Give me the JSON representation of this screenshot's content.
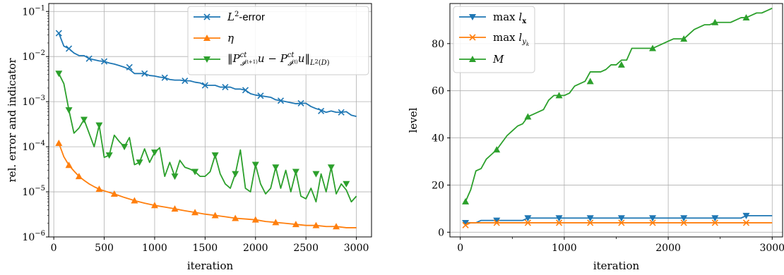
{
  "chart_data": [
    {
      "type": "line",
      "xlabel": "iteration",
      "ylabel": "rel. error and indicator",
      "yscale": "log",
      "xlim": [
        -50,
        3150
      ],
      "ylim": [
        1e-06,
        0.15
      ],
      "x_ticks": [
        0,
        500,
        1000,
        1500,
        2000,
        2500,
        3000
      ],
      "x_tick_labels": [
        "0",
        "500",
        "1000",
        "1500",
        "2000",
        "2500",
        "3000"
      ],
      "y_ticks": [
        1e-06,
        1e-05,
        0.0001,
        0.001,
        0.01,
        0.1
      ],
      "y_tick_labels": [
        "10",
        "10",
        "10",
        "10",
        "10",
        "10"
      ],
      "y_tick_exponents": [
        "−6",
        "−5",
        "−4",
        "−3",
        "−2",
        "−1"
      ],
      "grid": true,
      "legend_position": "top-right",
      "series": [
        {
          "name": "L²-error",
          "color": "#1f77b4",
          "marker": "x",
          "x": [
            50,
            100,
            150,
            200,
            250,
            300,
            350,
            400,
            450,
            500,
            550,
            600,
            650,
            700,
            750,
            800,
            850,
            900,
            950,
            1000,
            1050,
            1100,
            1150,
            1200,
            1250,
            1300,
            1350,
            1400,
            1450,
            1500,
            1550,
            1600,
            1650,
            1700,
            1750,
            1800,
            1850,
            1900,
            1950,
            2000,
            2050,
            2100,
            2150,
            2200,
            2250,
            2300,
            2350,
            2400,
            2450,
            2500,
            2550,
            2600,
            2650,
            2700,
            2750,
            2800,
            2850,
            2900,
            2950,
            3000
          ],
          "y": [
            0.033,
            0.017,
            0.015,
            0.012,
            0.0105,
            0.0105,
            0.009,
            0.0085,
            0.008,
            0.0078,
            0.0072,
            0.0068,
            0.0063,
            0.0058,
            0.0052,
            0.0042,
            0.0042,
            0.0042,
            0.0038,
            0.0037,
            0.0035,
            0.0034,
            0.0031,
            0.003,
            0.003,
            0.0029,
            0.0029,
            0.0027,
            0.0026,
            0.0023,
            0.0023,
            0.0023,
            0.0021,
            0.0021,
            0.0021,
            0.0019,
            0.0019,
            0.0018,
            0.0015,
            0.0014,
            0.00135,
            0.0013,
            0.00125,
            0.0011,
            0.00105,
            0.001,
            0.00095,
            0.0009,
            0.00092,
            0.00092,
            0.00078,
            0.0007,
            0.00065,
            0.00058,
            0.00062,
            0.00058,
            0.00058,
            0.0006,
            0.0005,
            0.00047
          ],
          "marker_x": [
            50,
            150,
            350,
            500,
            750,
            900,
            1100,
            1300,
            1500,
            1700,
            1900,
            2050,
            2250,
            2450,
            2650,
            2850
          ],
          "marker_y": [
            0.033,
            0.015,
            0.009,
            0.0078,
            0.0058,
            0.0042,
            0.0034,
            0.0029,
            0.0023,
            0.0021,
            0.0018,
            0.00135,
            0.00105,
            0.00092,
            0.00062,
            0.00058
          ]
        },
        {
          "name": "η",
          "color": "#ff7f0e",
          "marker": "^",
          "x": [
            50,
            100,
            150,
            200,
            250,
            300,
            350,
            400,
            450,
            500,
            600,
            700,
            800,
            900,
            1000,
            1100,
            1200,
            1300,
            1400,
            1500,
            1600,
            1700,
            1800,
            1900,
            2000,
            2100,
            2200,
            2300,
            2400,
            2500,
            2600,
            2700,
            2800,
            2900,
            3000
          ],
          "y": [
            0.00012,
            6e-05,
            3.9e-05,
            2.9e-05,
            2.2e-05,
            1.8e-05,
            1.5e-05,
            1.3e-05,
            1.15e-05,
            1.05e-05,
            9e-06,
            7.5e-06,
            6.4e-06,
            5.6e-06,
            5e-06,
            4.6e-06,
            4.2e-06,
            3.8e-06,
            3.5e-06,
            3.2e-06,
            3e-06,
            2.8e-06,
            2.6e-06,
            2.5e-06,
            2.4e-06,
            2.2e-06,
            2.1e-06,
            2e-06,
            1.9e-06,
            1.8e-06,
            1.8e-06,
            1.7e-06,
            1.7e-06,
            1.6e-06,
            1.6e-06
          ],
          "marker_x": [
            50,
            150,
            250,
            450,
            600,
            800,
            1000,
            1200,
            1400,
            1600,
            1800,
            2000,
            2200,
            2400,
            2600,
            2800
          ],
          "marker_y": [
            0.00012,
            3.9e-05,
            2.2e-05,
            1.15e-05,
            9e-06,
            6.4e-06,
            5e-06,
            4.2e-06,
            3.5e-06,
            3e-06,
            2.6e-06,
            2.4e-06,
            2.1e-06,
            1.9e-06,
            1.8e-06,
            1.7e-06
          ]
        },
        {
          "name": "‖P^ct_{I^(t+1)} u − P^ct_{I^(t)} u‖_{L²(D)}",
          "color": "#2ca02c",
          "marker": "v",
          "x": [
            50,
            100,
            150,
            200,
            250,
            300,
            350,
            400,
            450,
            500,
            550,
            600,
            650,
            700,
            750,
            800,
            850,
            900,
            950,
            1000,
            1050,
            1100,
            1150,
            1200,
            1250,
            1300,
            1350,
            1400,
            1450,
            1500,
            1550,
            1600,
            1650,
            1700,
            1750,
            1800,
            1850,
            1900,
            1950,
            2000,
            2050,
            2100,
            2150,
            2200,
            2250,
            2300,
            2350,
            2400,
            2450,
            2500,
            2550,
            2600,
            2650,
            2700,
            2750,
            2800,
            2850,
            2900,
            2950,
            3000
          ],
          "y": [
            0.0042,
            0.0025,
            0.00065,
            0.0002,
            0.00026,
            0.0004,
            0.0002,
            0.0001,
            0.0003,
            5.8e-05,
            6.5e-05,
            0.00018,
            0.00013,
            0.0001,
            0.00016,
            4e-05,
            4.5e-05,
            9e-05,
            4.5e-05,
            7.5e-05,
            9.5e-05,
            2.2e-05,
            4.5e-05,
            2.2e-05,
            5e-05,
            3.5e-05,
            3.2e-05,
            2.8e-05,
            2.2e-05,
            2.2e-05,
            2.8e-05,
            6.5e-05,
            2.5e-05,
            1.5e-05,
            1.2e-05,
            2.5e-05,
            8.5e-05,
            1.2e-05,
            1e-05,
            4e-05,
            1.5e-05,
            9e-06,
            1.2e-05,
            3.5e-05,
            1.2e-05,
            3e-05,
            1e-05,
            2.8e-05,
            8e-06,
            7e-06,
            1.2e-05,
            6e-06,
            2.5e-05,
            1e-05,
            3.5e-05,
            9e-06,
            1.5e-05,
            1.1e-05,
            6e-06,
            8e-06
          ],
          "marker_x": [
            50,
            150,
            300,
            450,
            550,
            700,
            850,
            1000,
            1200,
            1400,
            1600,
            1800,
            2000,
            2200,
            2400,
            2600,
            2750,
            2900
          ],
          "marker_y": [
            0.0042,
            0.00065,
            0.0004,
            0.0003,
            6.5e-05,
            0.0001,
            4.5e-05,
            7.5e-05,
            2.2e-05,
            2.8e-05,
            6.5e-05,
            2.5e-05,
            4e-05,
            3.5e-05,
            2.8e-05,
            2.5e-05,
            3.5e-05,
            1.5e-05
          ]
        }
      ]
    },
    {
      "type": "line",
      "xlabel": "iteration",
      "ylabel": "level",
      "yscale": "linear",
      "xlim": [
        -100,
        3100
      ],
      "ylim": [
        -2,
        97
      ],
      "x_ticks": [
        0,
        1000,
        2000,
        3000
      ],
      "x_tick_labels": [
        "0",
        "1000",
        "2000",
        "3000"
      ],
      "x_minor_ticks": [
        500,
        1500,
        2500
      ],
      "y_ticks": [
        0,
        20,
        40,
        60,
        80
      ],
      "y_tick_labels": [
        "0",
        "20",
        "40",
        "60",
        "80"
      ],
      "grid": true,
      "legend_position": "top-left",
      "series": [
        {
          "name": "max l_x",
          "color": "#1f77b4",
          "marker": "v",
          "x": [
            50,
            150,
            200,
            300,
            400,
            500,
            600,
            650,
            700,
            800,
            900,
            1000,
            1200,
            1400,
            1600,
            1800,
            2000,
            2200,
            2400,
            2600,
            2700,
            2750,
            2800,
            2900,
            3000
          ],
          "y": [
            4,
            4,
            5,
            5,
            5,
            5,
            5,
            6,
            6,
            6,
            6,
            6,
            6,
            6,
            6,
            6,
            6,
            6,
            6,
            6,
            6,
            7,
            7,
            7,
            7
          ],
          "marker_x": [
            50,
            350,
            650,
            950,
            1250,
            1550,
            1850,
            2150,
            2450,
            2750
          ],
          "marker_y": [
            4,
            5,
            6,
            6,
            6,
            6,
            6,
            6,
            6,
            7
          ]
        },
        {
          "name": "max l_{y_k}",
          "color": "#ff7f0e",
          "marker": "x",
          "x": [
            50,
            100,
            150,
            200,
            300,
            400,
            500,
            600,
            650,
            700,
            800,
            1000,
            1500,
            2000,
            2500,
            3000
          ],
          "y": [
            3,
            4,
            4,
            4,
            4,
            4,
            4,
            4,
            4,
            4,
            4,
            4,
            4,
            4,
            4,
            4
          ],
          "marker_x": [
            50,
            350,
            650,
            950,
            1250,
            1550,
            1850,
            2150,
            2450,
            2750
          ],
          "marker_y": [
            3,
            4,
            4,
            4,
            4,
            4,
            4,
            4,
            4,
            4
          ]
        },
        {
          "name": "M",
          "color": "#2ca02c",
          "marker": "^",
          "x": [
            50,
            100,
            150,
            200,
            250,
            300,
            350,
            400,
            450,
            500,
            550,
            600,
            650,
            700,
            750,
            800,
            850,
            900,
            950,
            1000,
            1050,
            1100,
            1150,
            1200,
            1250,
            1300,
            1350,
            1400,
            1450,
            1500,
            1550,
            1600,
            1650,
            1700,
            1750,
            1800,
            1850,
            1900,
            1950,
            2000,
            2050,
            2100,
            2150,
            2200,
            2250,
            2300,
            2350,
            2400,
            2450,
            2500,
            2550,
            2600,
            2650,
            2700,
            2750,
            2800,
            2850,
            2900,
            2950,
            3000
          ],
          "y": [
            13,
            18,
            26,
            27,
            31,
            33,
            35,
            38,
            41,
            43,
            45,
            46,
            49,
            50,
            51,
            52,
            56,
            58,
            58,
            58,
            59,
            62,
            63,
            64,
            68,
            68,
            68,
            69,
            71,
            71,
            73,
            73,
            78,
            78,
            78,
            78,
            78,
            79,
            80,
            81,
            82,
            82,
            82,
            84,
            86,
            87,
            88,
            88,
            89,
            89,
            89,
            89,
            90,
            91,
            91,
            92,
            93,
            93,
            94,
            95
          ],
          "marker_x": [
            50,
            350,
            650,
            950,
            1250,
            1550,
            1850,
            2150,
            2450,
            2750
          ],
          "marker_y": [
            13,
            35,
            49,
            58,
            64,
            71,
            78,
            82,
            89,
            91
          ]
        }
      ]
    }
  ]
}
